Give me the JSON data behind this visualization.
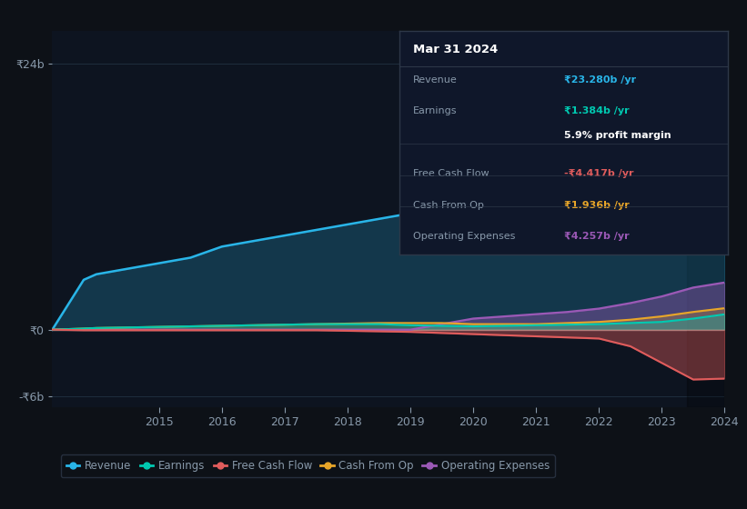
{
  "background_color": "#0d1117",
  "plot_bg_color": "#0d1420",
  "years": [
    2013.3,
    2013.8,
    2014,
    2014.5,
    2015,
    2015.5,
    2016,
    2016.5,
    2017,
    2017.5,
    2018,
    2018.5,
    2019,
    2019.5,
    2020,
    2020.5,
    2021,
    2021.5,
    2022,
    2022.5,
    2023,
    2023.5,
    2024
  ],
  "revenue": [
    0,
    4.5,
    5.0,
    5.5,
    6.0,
    6.5,
    7.5,
    8.0,
    8.5,
    9.0,
    9.5,
    10.0,
    10.5,
    11.0,
    10.5,
    10.0,
    10.2,
    11.0,
    13.0,
    16.0,
    18.5,
    21.0,
    23.28
  ],
  "earnings": [
    0,
    0.1,
    0.15,
    0.2,
    0.25,
    0.3,
    0.35,
    0.4,
    0.45,
    0.5,
    0.5,
    0.5,
    0.4,
    0.35,
    0.3,
    0.35,
    0.4,
    0.45,
    0.5,
    0.6,
    0.7,
    1.0,
    1.384
  ],
  "free_cash_flow": [
    0,
    -0.05,
    -0.05,
    -0.05,
    -0.05,
    -0.05,
    -0.05,
    -0.05,
    -0.05,
    -0.05,
    -0.1,
    -0.15,
    -0.2,
    -0.3,
    -0.4,
    -0.5,
    -0.6,
    -0.7,
    -0.8,
    -1.5,
    -3.0,
    -4.5,
    -4.417
  ],
  "cash_from_op": [
    0,
    0.1,
    0.15,
    0.2,
    0.25,
    0.3,
    0.35,
    0.4,
    0.45,
    0.5,
    0.55,
    0.6,
    0.6,
    0.6,
    0.5,
    0.5,
    0.5,
    0.6,
    0.7,
    0.9,
    1.2,
    1.6,
    1.936
  ],
  "op_expenses": [
    0,
    0,
    0,
    0,
    0,
    0,
    0,
    0,
    0,
    0,
    0,
    0,
    0,
    0.5,
    1.0,
    1.2,
    1.4,
    1.6,
    1.9,
    2.4,
    3.0,
    3.8,
    4.257
  ],
  "revenue_color": "#29b5e8",
  "earnings_color": "#00c9b1",
  "free_cash_flow_color": "#e05c5c",
  "cash_from_op_color": "#e8a629",
  "op_expenses_color": "#9b59b6",
  "grid_color": "#1e2d3d",
  "tick_color": "#8899aa",
  "white_line_color": "#ffffff",
  "ylim": [
    -7,
    27
  ],
  "yticks": [
    -6,
    0,
    24
  ],
  "ytick_labels": [
    "-₹6b",
    "₹0",
    "₹24b"
  ],
  "xtick_labels": [
    "2015",
    "2016",
    "2017",
    "2018",
    "2019",
    "2020",
    "2021",
    "2022",
    "2023",
    "2024"
  ],
  "xtick_values": [
    2015,
    2016,
    2017,
    2018,
    2019,
    2020,
    2021,
    2022,
    2023,
    2024
  ],
  "tooltip_bg": "#0f172a",
  "tooltip_border": "#2d3748",
  "tooltip_title": "Mar 31 2024",
  "tooltip_rows": [
    {
      "label": "Revenue",
      "value": "₹23.280b /yr",
      "color": "#29b5e8"
    },
    {
      "label": "Earnings",
      "value": "₹1.384b /yr",
      "color": "#00c9b1"
    },
    {
      "label": "",
      "value": "5.9% profit margin",
      "color": "#ffffff"
    },
    {
      "label": "Free Cash Flow",
      "value": "-₹4.417b /yr",
      "color": "#e05c5c"
    },
    {
      "label": "Cash From Op",
      "value": "₹1.936b /yr",
      "color": "#e8a629"
    },
    {
      "label": "Operating Expenses",
      "value": "₹4.257b /yr",
      "color": "#9b59b6"
    }
  ],
  "legend_items": [
    {
      "label": "Revenue",
      "color": "#29b5e8"
    },
    {
      "label": "Earnings",
      "color": "#00c9b1"
    },
    {
      "label": "Free Cash Flow",
      "color": "#e05c5c"
    },
    {
      "label": "Cash From Op",
      "color": "#e8a629"
    },
    {
      "label": "Operating Expenses",
      "color": "#9b59b6"
    }
  ]
}
